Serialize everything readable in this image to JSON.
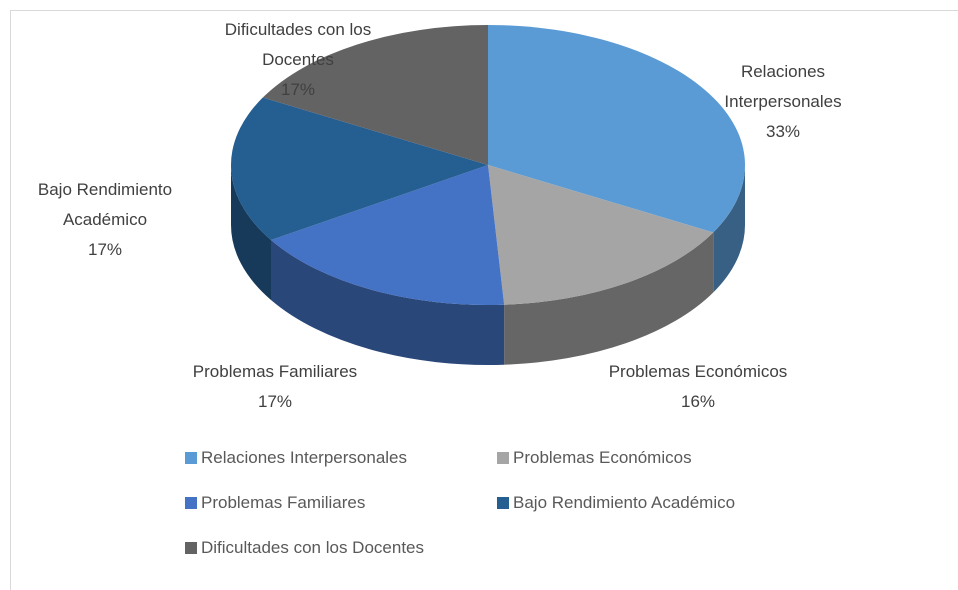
{
  "chart_data": {
    "type": "pie",
    "categories": [
      "Relaciones Interpersonales",
      "Problemas Económicos",
      "Problemas Familiares",
      "Bajo Rendimiento Académico",
      "Dificultades con los Docentes"
    ],
    "values": [
      33,
      16,
      17,
      17,
      17
    ],
    "value_labels": [
      "33%",
      "16%",
      "17%",
      "17%",
      "17%"
    ],
    "colors": [
      "#5b9bd5",
      "#a5a5a5",
      "#4472c4",
      "#255e91",
      "#636363"
    ],
    "legend": "bottom"
  }
}
